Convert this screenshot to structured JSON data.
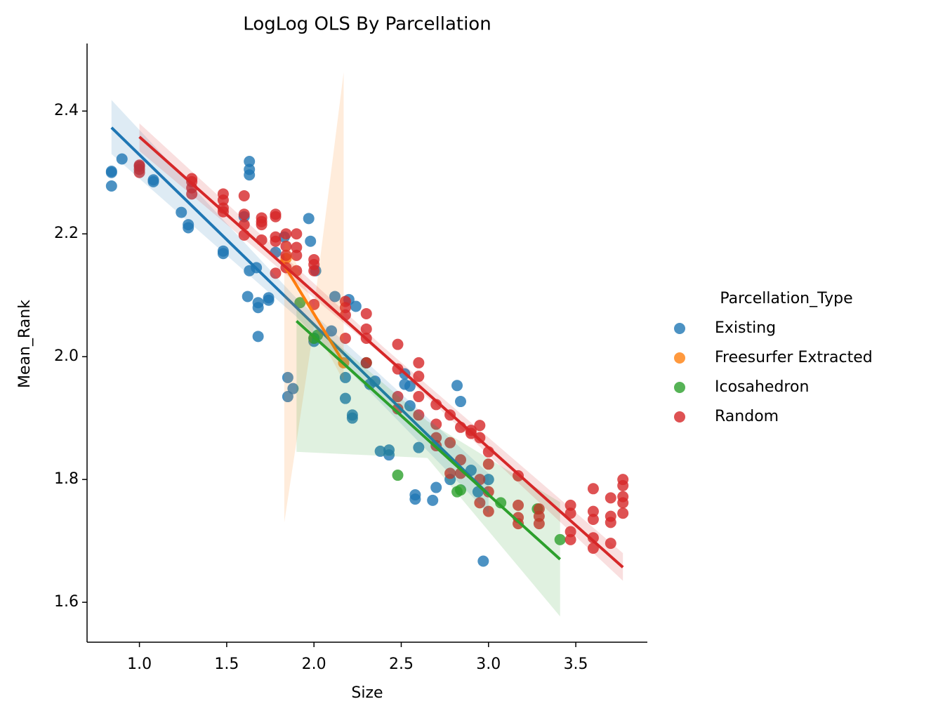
{
  "chart_data": {
    "type": "scatter",
    "title": "LogLog OLS By Parcellation",
    "x_label": "Size",
    "y_label": "Mean_Rank",
    "legend_title": "Parcellation_Type",
    "legend": "right",
    "xlim": [
      0.7,
      3.91
    ],
    "ylim": [
      1.535,
      2.51
    ],
    "xticks": [
      {
        "value": 1,
        "label": "1.0"
      },
      1.5,
      {
        "value": 2,
        "label": "2.0"
      },
      2.5,
      {
        "value": 3,
        "label": "3.0"
      },
      3.5
    ],
    "yticks": [
      1.6,
      1.8,
      {
        "value": 2,
        "label": "2.0"
      },
      2.2,
      2.4
    ],
    "series": [
      {
        "name": "Existing",
        "color": "#1f77b4",
        "x": [
          0.84,
          0.84,
          0.84,
          0.9,
          1.08,
          1.08,
          1.24,
          1.28,
          1.28,
          1.48,
          1.48,
          1.6,
          1.62,
          1.63,
          1.63,
          1.63,
          1.63,
          1.67,
          1.68,
          1.68,
          1.68,
          1.74,
          1.74,
          1.78,
          1.83,
          1.85,
          1.85,
          1.88,
          1.97,
          1.98,
          2.01,
          2.0,
          2.0,
          2.1,
          2.12,
          2.18,
          2.18,
          2.2,
          2.22,
          2.22,
          2.24,
          2.3,
          2.32,
          2.35,
          2.38,
          2.43,
          2.43,
          2.52,
          2.52,
          2.55,
          2.55,
          2.58,
          2.58,
          2.6,
          2.68,
          2.7,
          2.78,
          2.82,
          2.84,
          2.9,
          2.94,
          2.97,
          3.0
        ],
        "values": [
          2.3,
          2.278,
          2.302,
          2.322,
          2.288,
          2.285,
          2.235,
          2.21,
          2.215,
          2.168,
          2.172,
          2.228,
          2.098,
          2.318,
          2.305,
          2.296,
          2.14,
          2.145,
          2.08,
          2.088,
          2.033,
          2.092,
          2.096,
          2.17,
          2.195,
          1.966,
          1.935,
          1.948,
          2.225,
          2.188,
          2.14,
          2.025,
          2.03,
          2.042,
          2.098,
          1.966,
          1.932,
          2.093,
          1.905,
          1.9,
          2.082,
          1.99,
          1.955,
          1.96,
          1.846,
          1.848,
          1.84,
          1.955,
          1.972,
          1.952,
          1.92,
          1.775,
          1.768,
          1.852,
          1.766,
          1.787,
          1.8,
          1.953,
          1.927,
          1.815,
          1.78,
          1.667,
          1.8
        ],
        "fit": {
          "x": [
            0.84,
            3.0
          ],
          "values": [
            2.373,
            1.776
          ]
        },
        "band": {
          "x": [
            0.84,
            1.9,
            3.0
          ],
          "lower": [
            2.33,
            2.065,
            1.745
          ],
          "upper": [
            2.418,
            2.095,
            1.81
          ]
        }
      },
      {
        "name": "Freesurfer Extracted",
        "color": "#ff7f0e",
        "x": [
          1.84,
          2.17
        ],
        "values": [
          2.16,
          1.99
        ],
        "fit": {
          "x": [
            1.81,
            2.16
          ],
          "values": [
            2.158,
            1.995
          ]
        },
        "band": {
          "x": [
            1.83,
            2.0,
            2.17
          ],
          "lower": [
            1.73,
            2.05,
            1.96
          ],
          "upper": [
            2.2,
            2.08,
            2.463
          ]
        }
      },
      {
        "name": "Icosahedron",
        "color": "#2ca02c",
        "x": [
          1.92,
          2.0,
          2.02,
          2.3,
          2.48,
          2.82,
          2.84,
          3.07,
          3.28,
          3.41
        ],
        "values": [
          2.088,
          2.03,
          2.035,
          1.99,
          1.807,
          1.78,
          1.783,
          1.762,
          1.752,
          1.702
        ],
        "fit": {
          "x": [
            1.9,
            3.41
          ],
          "values": [
            2.058,
            1.67
          ]
        },
        "band": {
          "x": [
            1.9,
            2.65,
            3.41
          ],
          "lower": [
            1.845,
            1.835,
            1.577
          ],
          "upper": [
            2.078,
            1.895,
            1.763
          ]
        }
      },
      {
        "name": "Random",
        "color": "#d62728",
        "x": [
          1.0,
          1.0,
          1.0,
          1.0,
          1.3,
          1.3,
          1.3,
          1.3,
          1.48,
          1.48,
          1.48,
          1.48,
          1.6,
          1.6,
          1.6,
          1.6,
          1.7,
          1.7,
          1.7,
          1.7,
          1.78,
          1.78,
          1.78,
          1.78,
          1.78,
          1.84,
          1.84,
          1.84,
          1.84,
          1.9,
          1.9,
          1.9,
          1.9,
          2.0,
          2.0,
          2.0,
          2.0,
          2.18,
          2.18,
          2.18,
          2.18,
          2.3,
          2.3,
          2.3,
          2.3,
          2.48,
          2.48,
          2.48,
          2.48,
          2.6,
          2.6,
          2.6,
          2.6,
          2.7,
          2.7,
          2.7,
          2.7,
          2.78,
          2.78,
          2.78,
          2.84,
          2.84,
          2.84,
          2.9,
          2.9,
          2.95,
          2.95,
          2.95,
          2.95,
          3.0,
          3.0,
          3.0,
          3.0,
          3.17,
          3.17,
          3.17,
          3.17,
          3.29,
          3.29,
          3.29,
          3.47,
          3.47,
          3.47,
          3.47,
          3.6,
          3.6,
          3.6,
          3.6,
          3.6,
          3.7,
          3.7,
          3.7,
          3.7,
          3.77,
          3.77,
          3.77,
          3.77,
          3.77
        ],
        "values": [
          2.31,
          2.3,
          2.312,
          2.305,
          2.29,
          2.285,
          2.275,
          2.265,
          2.265,
          2.255,
          2.242,
          2.236,
          2.262,
          2.232,
          2.215,
          2.198,
          2.226,
          2.22,
          2.215,
          2.19,
          2.232,
          2.228,
          2.195,
          2.188,
          2.136,
          2.2,
          2.18,
          2.165,
          2.145,
          2.2,
          2.178,
          2.165,
          2.14,
          2.158,
          2.15,
          2.14,
          2.085,
          2.09,
          2.08,
          2.068,
          2.03,
          2.07,
          2.045,
          2.03,
          1.99,
          2.02,
          1.98,
          1.935,
          1.915,
          1.99,
          1.968,
          1.935,
          1.905,
          1.922,
          1.89,
          1.868,
          1.855,
          1.905,
          1.86,
          1.81,
          1.885,
          1.832,
          1.81,
          1.875,
          1.88,
          1.888,
          1.868,
          1.8,
          1.762,
          1.845,
          1.825,
          1.78,
          1.748,
          1.806,
          1.758,
          1.738,
          1.728,
          1.752,
          1.74,
          1.728,
          1.758,
          1.745,
          1.715,
          1.702,
          1.785,
          1.748,
          1.735,
          1.705,
          1.688,
          1.77,
          1.74,
          1.73,
          1.696,
          1.8,
          1.79,
          1.772,
          1.762,
          1.745
        ],
        "fit": {
          "x": [
            1.0,
            3.77
          ],
          "values": [
            2.358,
            1.657
          ]
        },
        "band": {
          "x": [
            1.0,
            2.4,
            3.77
          ],
          "lower": [
            2.335,
            2.0,
            1.635
          ],
          "upper": [
            2.38,
            2.015,
            1.68
          ]
        }
      }
    ]
  }
}
